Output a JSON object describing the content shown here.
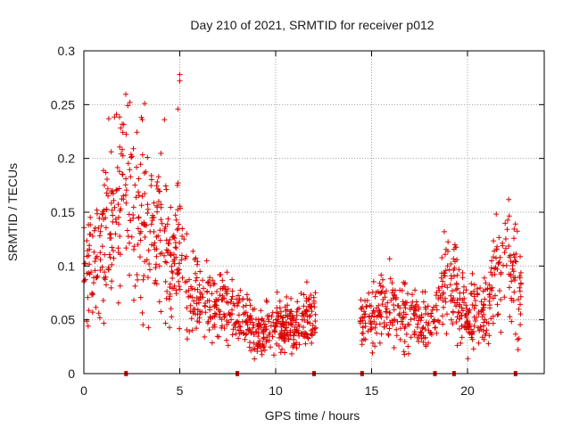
{
  "chart_data": {
    "type": "scatter",
    "title": "Day 210 of 2021, SRMTID for receiver p012",
    "xlabel": "GPS time / hours",
    "ylabel": "SRMTID / TECUs",
    "xlim": [
      0,
      24
    ],
    "ylim": [
      0,
      0.3
    ],
    "x_ticks": [
      0,
      5,
      10,
      15,
      20
    ],
    "x_tick_labels": [
      "0",
      "5",
      "10",
      "15",
      "20"
    ],
    "y_ticks": [
      0,
      0.05,
      0.1,
      0.15,
      0.2,
      0.25,
      0.3
    ],
    "y_tick_labels": [
      "0",
      "0.05",
      "0.1",
      "0.15",
      "0.2",
      "0.25",
      "0.3"
    ],
    "grid": true,
    "marker": "+",
    "color": "#dd0000",
    "data_gaps_hours": [
      [
        12.1,
        14.4
      ]
    ],
    "baseline_marks_hours": [
      2.2,
      8.0,
      12.0,
      14.5,
      18.3,
      19.3,
      22.5
    ],
    "series": [
      {
        "name": "SRMTID p012",
        "approx_profile": [
          {
            "x": 0.0,
            "y": 0.11
          },
          {
            "x": 0.5,
            "y": 0.09
          },
          {
            "x": 1.0,
            "y": 0.13
          },
          {
            "x": 1.5,
            "y": 0.15
          },
          {
            "x": 2.0,
            "y": 0.17
          },
          {
            "x": 2.5,
            "y": 0.16
          },
          {
            "x": 3.0,
            "y": 0.15
          },
          {
            "x": 3.5,
            "y": 0.13
          },
          {
            "x": 4.0,
            "y": 0.14
          },
          {
            "x": 4.5,
            "y": 0.1
          },
          {
            "x": 5.0,
            "y": 0.12
          },
          {
            "x": 5.5,
            "y": 0.07
          },
          {
            "x": 6.0,
            "y": 0.065
          },
          {
            "x": 7.0,
            "y": 0.06
          },
          {
            "x": 8.0,
            "y": 0.055
          },
          {
            "x": 9.0,
            "y": 0.035
          },
          {
            "x": 10.0,
            "y": 0.045
          },
          {
            "x": 11.0,
            "y": 0.045
          },
          {
            "x": 12.0,
            "y": 0.05
          },
          {
            "x": 14.5,
            "y": 0.05
          },
          {
            "x": 15.5,
            "y": 0.055
          },
          {
            "x": 16.5,
            "y": 0.06
          },
          {
            "x": 17.5,
            "y": 0.045
          },
          {
            "x": 18.3,
            "y": 0.05
          },
          {
            "x": 19.0,
            "y": 0.09
          },
          {
            "x": 19.5,
            "y": 0.075
          },
          {
            "x": 20.0,
            "y": 0.05
          },
          {
            "x": 21.0,
            "y": 0.065
          },
          {
            "x": 21.5,
            "y": 0.09
          },
          {
            "x": 22.0,
            "y": 0.11
          },
          {
            "x": 22.8,
            "y": 0.08
          }
        ],
        "point_count": 1500,
        "peak_points": [
          {
            "x": 5.0,
            "y": 0.278
          },
          {
            "x": 5.0,
            "y": 0.272
          },
          {
            "x": 2.4,
            "y": 0.252
          },
          {
            "x": 4.9,
            "y": 0.246
          },
          {
            "x": 1.7,
            "y": 0.241
          },
          {
            "x": 3.0,
            "y": 0.238
          },
          {
            "x": 4.2,
            "y": 0.236
          }
        ]
      }
    ]
  }
}
